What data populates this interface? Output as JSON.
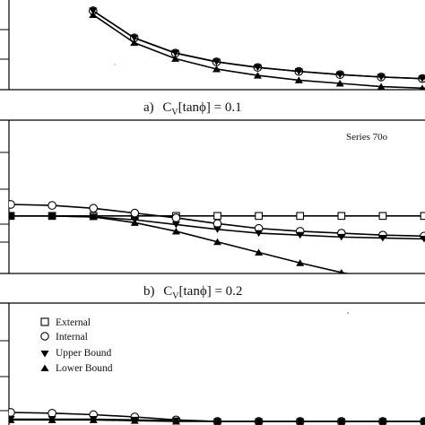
{
  "figure": {
    "series_tag": "Series 70o",
    "legend": [
      {
        "label": "External",
        "marker": "square-open"
      },
      {
        "label": "Internal",
        "marker": "circle-open"
      },
      {
        "label": "Upper Bound",
        "marker": "triangle-down-filled"
      },
      {
        "label": "Lower Bound",
        "marker": "triangle-up-filled"
      }
    ]
  },
  "chart_data": [
    {
      "type": "line",
      "panel": "a",
      "caption_prefix": "a)",
      "caption_var": "C",
      "caption_sub": "V",
      "caption_rest": "[tanϕ] = 0.1",
      "x": [
        2,
        3,
        4,
        5,
        6,
        7,
        8,
        9,
        10
      ],
      "series": [
        {
          "name": "Internal",
          "marker": "circle-open",
          "values": [
            1.0,
            0.66,
            0.47,
            0.36,
            0.29,
            0.24,
            0.2,
            0.17,
            0.15
          ]
        },
        {
          "name": "Upper Bound",
          "marker": "triangle-down-filled",
          "values": [
            1.0,
            0.66,
            0.47,
            0.36,
            0.29,
            0.24,
            0.2,
            0.17,
            0.15
          ]
        },
        {
          "name": "Lower Bound",
          "marker": "triangle-up-filled",
          "values": [
            0.95,
            0.6,
            0.4,
            0.27,
            0.19,
            0.13,
            0.09,
            0.05,
            0.03
          ]
        }
      ]
    },
    {
      "type": "line",
      "panel": "b",
      "caption_prefix": "b)",
      "caption_var": "C",
      "caption_sub": "V",
      "caption_rest": "[tanϕ] = 0.2",
      "x": [
        0,
        1,
        2,
        3,
        4,
        5,
        6,
        7,
        8,
        9,
        10
      ],
      "series": [
        {
          "name": "External",
          "marker": "square-open",
          "values": [
            0.7,
            0.7,
            0.7,
            0.7,
            0.7,
            0.7,
            0.7,
            0.7,
            0.7,
            0.7,
            0.7
          ]
        },
        {
          "name": "Internal",
          "marker": "circle-open",
          "values": [
            0.82,
            0.81,
            0.78,
            0.73,
            0.68,
            0.62,
            0.57,
            0.54,
            0.52,
            0.5,
            0.49
          ]
        },
        {
          "name": "Upper Bound",
          "marker": "triangle-down-filled",
          "values": [
            0.7,
            0.7,
            0.69,
            0.66,
            0.61,
            0.56,
            0.52,
            0.5,
            0.48,
            0.47,
            0.46
          ]
        },
        {
          "name": "Lower Bound",
          "marker": "triangle-up-filled",
          "values": [
            0.7,
            0.7,
            0.69,
            0.63,
            0.54,
            0.43,
            0.32,
            0.21,
            0.11,
            0.03,
            -0.04
          ]
        }
      ]
    },
    {
      "type": "line",
      "panel": "c",
      "x": [
        0,
        1,
        2,
        3,
        4,
        5,
        6,
        7,
        8,
        9,
        10
      ],
      "series": [
        {
          "name": "Internal",
          "marker": "circle-open",
          "values": [
            0.12,
            0.11,
            0.09,
            0.06,
            0.02,
            0.0,
            0.0,
            0.0,
            0.0,
            0.0,
            0.0
          ]
        },
        {
          "name": "Upper Bound",
          "marker": "triangle-down-filled",
          "values": [
            0.03,
            0.03,
            0.03,
            0.02,
            0.01,
            0.0,
            0.0,
            0.0,
            0.0,
            0.0,
            0.0
          ]
        },
        {
          "name": "Lower Bound",
          "marker": "triangle-up-filled",
          "values": [
            0.02,
            0.02,
            0.02,
            0.01,
            0.0,
            0.0,
            0.0,
            0.0,
            0.0,
            0.0,
            0.0
          ]
        }
      ]
    }
  ]
}
